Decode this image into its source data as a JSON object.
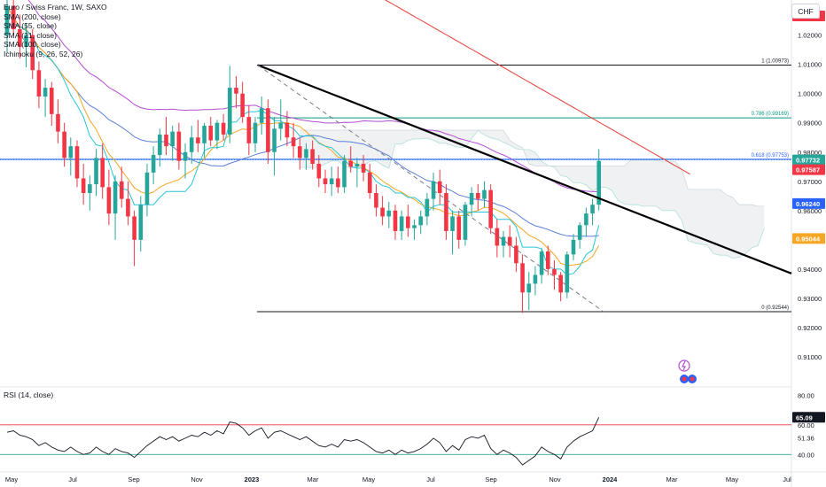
{
  "header": {
    "title": "Euro / Swiss Franc, 1W, SAXO",
    "indicators": [
      "SMA (200, close)",
      "SMA (55, close)",
      "SMA (21, close)",
      "SMA (100, close)",
      "Ichimoku (9, 26, 52, 26)"
    ],
    "currency": "CHF",
    "rsi_title": "RSI (14, close)"
  },
  "colors": {
    "up": "#26a69a",
    "down": "#f23645",
    "sma200": "#e53935",
    "sma55": "#5b7fd6",
    "sma21": "#f5a623",
    "sma100": "#b34dd1",
    "conversion": "#26c6da",
    "fib_top": "#131722",
    "fib_786": "#089981",
    "fib_618": "#2962ff",
    "trendline": "#000000",
    "rsi_line": "#131722",
    "rsi_upper": "#f23645",
    "rsi_lower": "#089981"
  },
  "chart_data": {
    "type": "candlestick",
    "symbol": "EURCHF",
    "timeframe": "1W",
    "ylim": [
      0.9,
      1.032
    ],
    "price_ticks": [
      "1.02000",
      "1.01000",
      "1.00000",
      "0.99000",
      "0.98000",
      "0.97000",
      "0.96000",
      "0.95000",
      "0.94000",
      "0.93000",
      "0.92000",
      "0.91000"
    ],
    "time_ticks": [
      "May",
      "Jul",
      "Sep",
      "Nov",
      "2023",
      "Mar",
      "May",
      "Jul",
      "Sep",
      "Nov",
      "2024",
      "Mar",
      "May",
      "Jul"
    ],
    "price_tags": [
      {
        "value": 1.02,
        "label": "1.02000",
        "color": "#f23645"
      },
      {
        "value": 0.97732,
        "label": "0.97732",
        "color": "#26a69a"
      },
      {
        "value": 0.97587,
        "label": "0.97587",
        "color": "#f23645"
      },
      {
        "value": 0.9624,
        "label": "0.96240",
        "color": "#2962ff"
      },
      {
        "value": 0.95044,
        "label": "0.95044",
        "color": "#f5a623"
      }
    ],
    "fibonacci": [
      {
        "level": "1",
        "value": 1.00973,
        "label": "1 (1.00973)"
      },
      {
        "level": "0.786",
        "value": 0.99169,
        "label": "0.786 (0.99169)"
      },
      {
        "level": "0.618",
        "value": 0.97753,
        "label": "0.618 (0.97753)"
      },
      {
        "level": "0",
        "value": 0.92544,
        "label": "0 (0.92544)"
      }
    ],
    "candles": [
      [
        1.02,
        1.032,
        1.014,
        1.03
      ],
      [
        1.03,
        1.034,
        1.02,
        1.022
      ],
      [
        1.022,
        1.027,
        1.012,
        1.016
      ],
      [
        1.016,
        1.024,
        1.009,
        1.02
      ],
      [
        1.02,
        1.022,
        1.005,
        1.008
      ],
      [
        1.008,
        1.011,
        0.995,
        0.999
      ],
      [
        0.999,
        1.005,
        0.992,
        1.002
      ],
      [
        1.002,
        1.004,
        0.989,
        0.993
      ],
      [
        0.993,
        0.998,
        0.983,
        0.987
      ],
      [
        0.987,
        0.99,
        0.975,
        0.978
      ],
      [
        0.978,
        0.985,
        0.972,
        0.982
      ],
      [
        0.982,
        0.984,
        0.968,
        0.971
      ],
      [
        0.971,
        0.976,
        0.962,
        0.966
      ],
      [
        0.966,
        0.972,
        0.96,
        0.969
      ],
      [
        0.969,
        0.981,
        0.965,
        0.978
      ],
      [
        0.978,
        0.983,
        0.964,
        0.968
      ],
      [
        0.968,
        0.974,
        0.955,
        0.959
      ],
      [
        0.959,
        0.972,
        0.95,
        0.97
      ],
      [
        0.97,
        0.975,
        0.961,
        0.964
      ],
      [
        0.964,
        0.97,
        0.955,
        0.958
      ],
      [
        0.958,
        0.96,
        0.941,
        0.95
      ],
      [
        0.95,
        0.965,
        0.946,
        0.962
      ],
      [
        0.962,
        0.976,
        0.958,
        0.973
      ],
      [
        0.973,
        0.982,
        0.969,
        0.979
      ],
      [
        0.979,
        0.988,
        0.975,
        0.986
      ],
      [
        0.986,
        0.992,
        0.979,
        0.982
      ],
      [
        0.982,
        0.989,
        0.977,
        0.987
      ],
      [
        0.987,
        0.99,
        0.974,
        0.977
      ],
      [
        0.977,
        0.983,
        0.971,
        0.98
      ],
      [
        0.98,
        0.989,
        0.976,
        0.985
      ],
      [
        0.985,
        0.991,
        0.98,
        0.983
      ],
      [
        0.983,
        0.99,
        0.978,
        0.989
      ],
      [
        0.989,
        0.992,
        0.982,
        0.984
      ],
      [
        0.984,
        0.991,
        0.981,
        0.99
      ],
      [
        0.99,
        0.993,
        0.984,
        0.986
      ],
      [
        0.986,
        1.0095,
        0.983,
        1.002
      ],
      [
        1.002,
        1.006,
        0.995,
        1.0
      ],
      [
        1.0,
        1.004,
        0.99,
        0.992
      ],
      [
        0.992,
        0.996,
        0.979,
        0.983
      ],
      [
        0.983,
        0.992,
        0.98,
        0.99
      ],
      [
        0.99,
        0.999,
        0.986,
        0.995
      ],
      [
        0.995,
        0.998,
        0.976,
        0.98
      ],
      [
        0.98,
        0.992,
        0.972,
        0.988
      ],
      [
        0.988,
        0.998,
        0.984,
        0.99
      ],
      [
        0.99,
        0.994,
        0.982,
        0.985
      ],
      [
        0.985,
        0.99,
        0.978,
        0.982
      ],
      [
        0.982,
        0.985,
        0.974,
        0.978
      ],
      [
        0.978,
        0.983,
        0.974,
        0.981
      ],
      [
        0.981,
        0.984,
        0.974,
        0.976
      ],
      [
        0.976,
        0.979,
        0.968,
        0.971
      ],
      [
        0.971,
        0.974,
        0.966,
        0.969
      ],
      [
        0.969,
        0.975,
        0.965,
        0.971
      ],
      [
        0.971,
        0.975,
        0.966,
        0.968
      ],
      [
        0.968,
        0.979,
        0.966,
        0.977
      ],
      [
        0.977,
        0.982,
        0.973,
        0.975
      ],
      [
        0.975,
        0.978,
        0.968,
        0.976
      ],
      [
        0.976,
        0.979,
        0.97,
        0.973
      ],
      [
        0.973,
        0.976,
        0.964,
        0.966
      ],
      [
        0.966,
        0.969,
        0.958,
        0.961
      ],
      [
        0.961,
        0.965,
        0.955,
        0.958
      ],
      [
        0.958,
        0.963,
        0.954,
        0.96
      ],
      [
        0.96,
        0.962,
        0.95,
        0.953
      ],
      [
        0.953,
        0.96,
        0.95,
        0.958
      ],
      [
        0.958,
        0.962,
        0.951,
        0.954
      ],
      [
        0.954,
        0.957,
        0.95,
        0.955
      ],
      [
        0.955,
        0.96,
        0.952,
        0.958
      ],
      [
        0.958,
        0.966,
        0.955,
        0.964
      ],
      [
        0.964,
        0.973,
        0.96,
        0.97
      ],
      [
        0.97,
        0.974,
        0.962,
        0.966
      ],
      [
        0.966,
        0.969,
        0.95,
        0.953
      ],
      [
        0.953,
        0.96,
        0.945,
        0.958
      ],
      [
        0.958,
        0.96,
        0.947,
        0.95
      ],
      [
        0.95,
        0.963,
        0.948,
        0.962
      ],
      [
        0.962,
        0.968,
        0.958,
        0.966
      ],
      [
        0.966,
        0.969,
        0.96,
        0.964
      ],
      [
        0.964,
        0.97,
        0.961,
        0.967
      ],
      [
        0.967,
        0.969,
        0.952,
        0.954
      ],
      [
        0.954,
        0.957,
        0.944,
        0.948
      ],
      [
        0.948,
        0.953,
        0.944,
        0.951
      ],
      [
        0.951,
        0.955,
        0.944,
        0.948
      ],
      [
        0.948,
        0.951,
        0.939,
        0.942
      ],
      [
        0.942,
        0.945,
        0.925,
        0.932
      ],
      [
        0.932,
        0.939,
        0.926,
        0.935
      ],
      [
        0.935,
        0.941,
        0.931,
        0.938
      ],
      [
        0.938,
        0.947,
        0.935,
        0.946
      ],
      [
        0.946,
        0.948,
        0.938,
        0.94
      ],
      [
        0.94,
        0.943,
        0.933,
        0.938
      ],
      [
        0.938,
        0.939,
        0.929,
        0.932
      ],
      [
        0.932,
        0.946,
        0.93,
        0.945
      ],
      [
        0.945,
        0.952,
        0.943,
        0.95
      ],
      [
        0.95,
        0.956,
        0.947,
        0.955
      ],
      [
        0.955,
        0.961,
        0.951,
        0.959
      ],
      [
        0.959,
        0.964,
        0.955,
        0.962
      ],
      [
        0.962,
        0.981,
        0.96,
        0.977
      ]
    ],
    "rsi": {
      "ylim": [
        30,
        85
      ],
      "ticks": [
        "80.00",
        "60.00",
        "40.00"
      ],
      "upper_band": 60,
      "lower_band": 40,
      "tags": [
        {
          "value": 65.09,
          "label": "65.09"
        },
        {
          "value": 51.36,
          "label": "51.36"
        }
      ],
      "values": [
        55,
        56,
        53,
        52,
        50,
        46,
        48,
        45,
        43,
        42,
        45,
        42,
        40,
        41,
        45,
        42,
        40,
        44,
        42,
        41,
        38,
        42,
        46,
        49,
        52,
        50,
        52,
        49,
        51,
        53,
        52,
        55,
        53,
        56,
        54,
        62,
        61,
        58,
        53,
        56,
        58,
        51,
        55,
        56,
        54,
        52,
        50,
        52,
        49,
        46,
        45,
        47,
        45,
        50,
        49,
        50,
        48,
        45,
        42,
        41,
        43,
        40,
        43,
        41,
        42,
        44,
        47,
        51,
        48,
        42,
        46,
        43,
        50,
        52,
        51,
        53,
        44,
        40,
        43,
        41,
        38,
        33,
        36,
        39,
        45,
        42,
        40,
        37,
        45,
        49,
        52,
        54,
        56,
        65.09
      ]
    }
  }
}
